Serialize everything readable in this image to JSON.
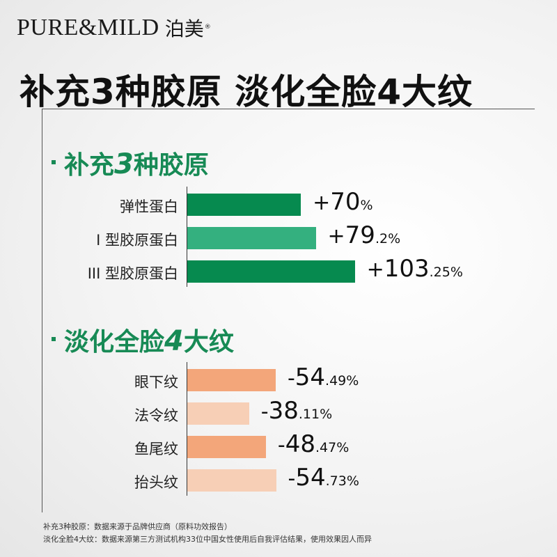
{
  "brand": {
    "name_en": "PURE&MILD",
    "name_cn": "泊美",
    "reg_mark": "®"
  },
  "headline": "补充3种胶原 淡化全脸4大纹",
  "colors": {
    "green_dark": "#068a4f",
    "green_light": "#34b07f",
    "orange_dark": "#f3a67a",
    "orange_light": "#f7cfb6",
    "section_title": "#178a55"
  },
  "chart_data": [
    {
      "type": "bar",
      "orientation": "horizontal",
      "title_parts": {
        "pre": "补充",
        "num": "3",
        "post": "种胶原"
      },
      "categories": [
        "弹性蛋白",
        "I 型胶原蛋白",
        "III 型胶原蛋白"
      ],
      "values": [
        70,
        79.2,
        103.25
      ],
      "value_labels": [
        {
          "sign": "+",
          "int": "70",
          "dec": "",
          "pct": "%"
        },
        {
          "sign": "+",
          "int": "79",
          "dec": ".2",
          "pct": "%"
        },
        {
          "sign": "+",
          "int": "103",
          "dec": ".25",
          "pct": "%"
        }
      ],
      "bar_colors": [
        "#068a4f",
        "#34b07f",
        "#068a4f"
      ]
    },
    {
      "type": "bar",
      "orientation": "horizontal",
      "title_parts": {
        "pre": "淡化全脸",
        "num": "4",
        "post": "大纹"
      },
      "categories": [
        "眼下纹",
        "法令纹",
        "鱼尾纹",
        "抬头纹"
      ],
      "values": [
        -54.49,
        -38.11,
        -48.47,
        -54.73
      ],
      "value_labels": [
        {
          "sign": "-",
          "int": "54",
          "dec": ".49",
          "pct": "%"
        },
        {
          "sign": "-",
          "int": "38",
          "dec": ".11",
          "pct": "%"
        },
        {
          "sign": "-",
          "int": "48",
          "dec": ".47",
          "pct": "%"
        },
        {
          "sign": "-",
          "int": "54",
          "dec": ".73",
          "pct": "%"
        }
      ],
      "bar_colors": [
        "#f3a67a",
        "#f7cfb6",
        "#f3a67a",
        "#f7cfb6"
      ]
    }
  ],
  "footnotes": [
    "补充3种胶原：数据来源于品牌供应商（原料功效报告）",
    "淡化全脸4大纹：数据来源第三方测试机构33位中国女性使用后自我评估结果，使用效果因人而异"
  ]
}
